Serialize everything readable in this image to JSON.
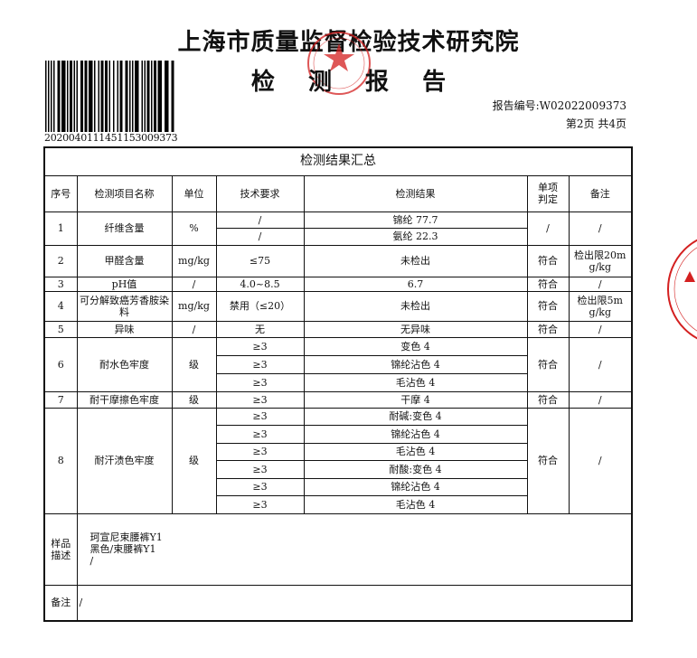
{
  "header": {
    "organization": "上海市质量监督检验技术研究院",
    "title": "检 测 报 告",
    "barcode_number": "20200401114511530093​73",
    "report_number": "报告编号:W02022009373",
    "page_info": "第2页  共4页"
  },
  "stamp_color": "#d42020",
  "table": {
    "caption": "检测结果汇总",
    "columns": [
      "序号",
      "检测项目名称",
      "单位",
      "技术要求",
      "检测结果",
      "单项判定",
      "备注"
    ],
    "items": [
      {
        "no": "1",
        "name": "纤维含量",
        "unit": "%",
        "subs": [
          {
            "req": "/",
            "result": "锦纶 77.7"
          },
          {
            "req": "/",
            "result": "氨纶 22.3"
          }
        ],
        "judgement": "/",
        "remark": "/"
      },
      {
        "no": "2",
        "name": "甲醛含量",
        "unit": "mg/kg",
        "subs": [
          {
            "req": "≤75",
            "result": "未检出"
          }
        ],
        "judgement": "符合",
        "remark": "检出限20mg/kg"
      },
      {
        "no": "3",
        "name": "pH值",
        "unit": "/",
        "subs": [
          {
            "req": "4.0~8.5",
            "result": "6.7"
          }
        ],
        "judgement": "符合",
        "remark": "/"
      },
      {
        "no": "4",
        "name": "可分解致癌芳香胺染料",
        "unit": "mg/kg",
        "subs": [
          {
            "req": "禁用（≤20）",
            "result": "未检出"
          }
        ],
        "judgement": "符合",
        "remark": "检出限5mg/kg"
      },
      {
        "no": "5",
        "name": "异味",
        "unit": "/",
        "subs": [
          {
            "req": "无",
            "result": "无异味"
          }
        ],
        "judgement": "符合",
        "remark": "/"
      },
      {
        "no": "6",
        "name": "耐水色牢度",
        "unit": "级",
        "subs": [
          {
            "req": "≥3",
            "result": "变色 4"
          },
          {
            "req": "≥3",
            "result": "锦纶沾色 4"
          },
          {
            "req": "≥3",
            "result": "毛沾色 4"
          }
        ],
        "judgement": "符合",
        "remark": "/"
      },
      {
        "no": "7",
        "name": "耐干摩擦色牢度",
        "unit": "级",
        "subs": [
          {
            "req": "≥3",
            "result": "干摩 4"
          }
        ],
        "judgement": "符合",
        "remark": "/"
      },
      {
        "no": "8",
        "name": "耐汗渍色牢度",
        "unit": "级",
        "subs": [
          {
            "req": "≥3",
            "result": "耐碱:变色 4"
          },
          {
            "req": "≥3",
            "result": "锦纶沾色 4"
          },
          {
            "req": "≥3",
            "result": "毛沾色 4"
          },
          {
            "req": "≥3",
            "result": "耐酸:变色 4"
          },
          {
            "req": "≥3",
            "result": "锦纶沾色 4"
          },
          {
            "req": "≥3",
            "result": "毛沾色 4"
          }
        ],
        "judgement": "符合",
        "remark": "/"
      }
    ],
    "sample_label": "样品描述",
    "sample_lines": [
      "珂宣尼束腰裤Y1",
      "黑色/束腰裤Y1",
      "/"
    ],
    "note_label": "备注",
    "note_value": "/"
  }
}
